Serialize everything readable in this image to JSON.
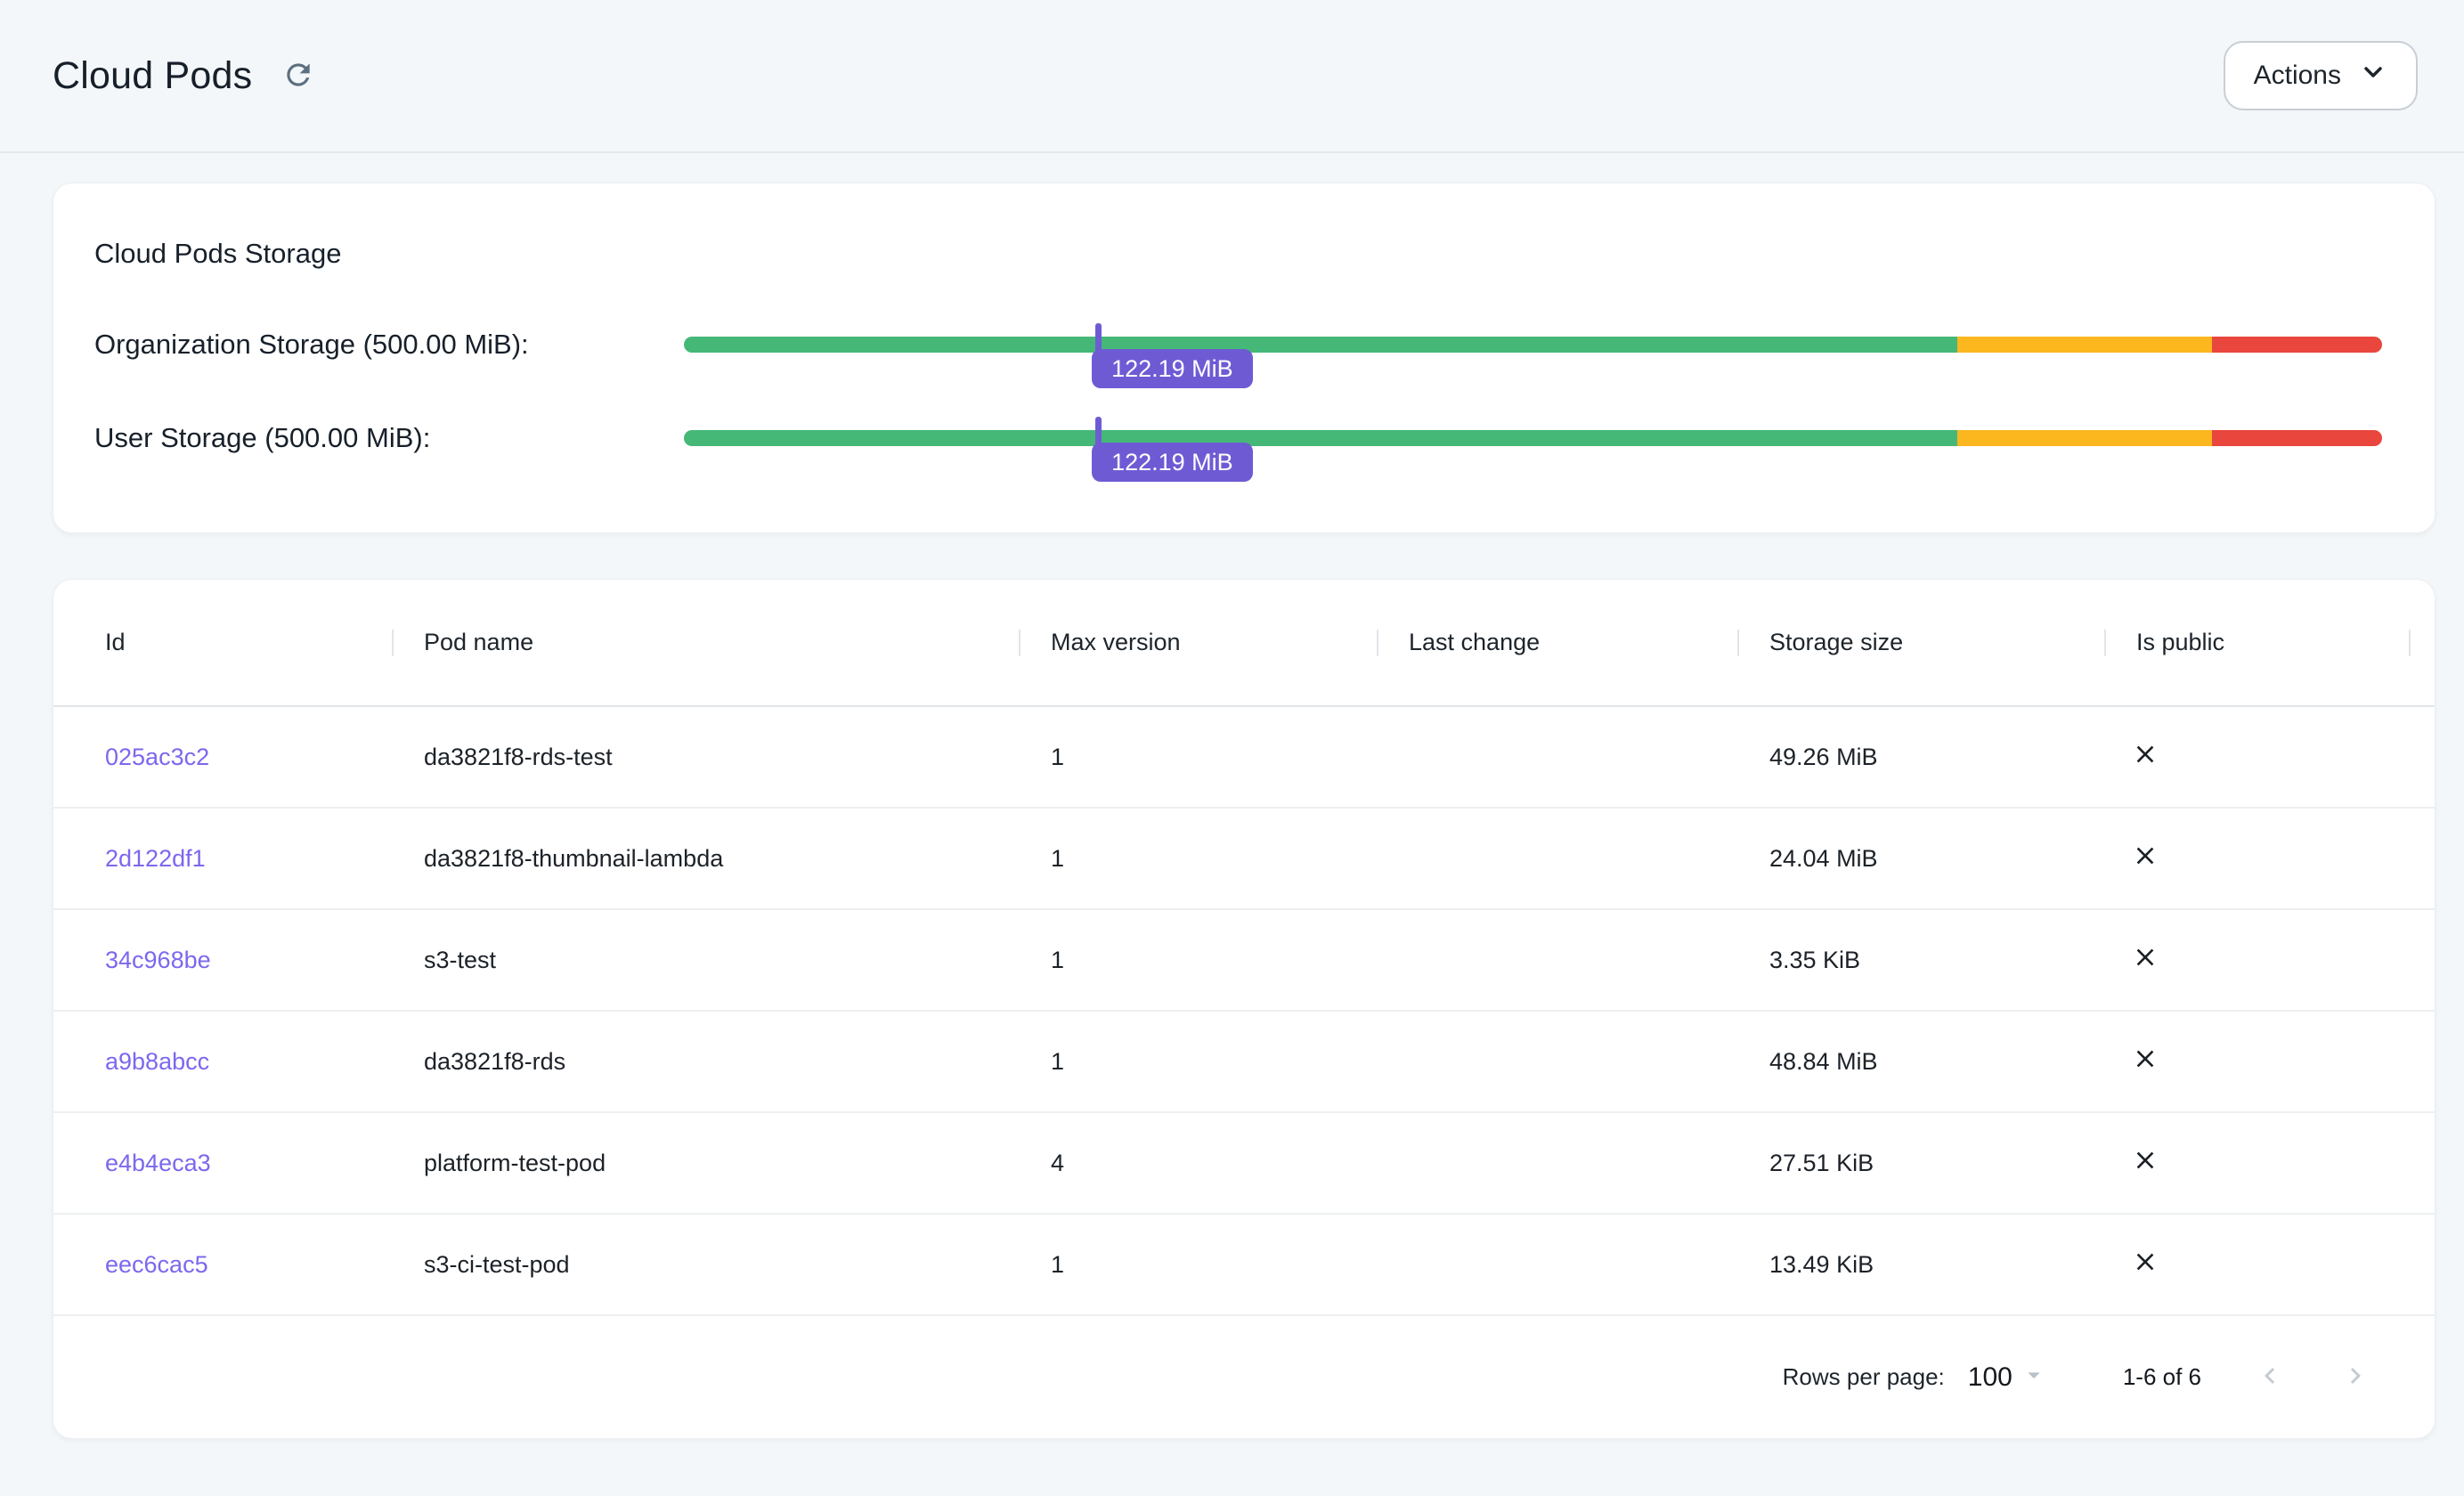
{
  "header": {
    "title": "Cloud Pods",
    "actions_button_label": "Actions"
  },
  "storage_card": {
    "title": "Cloud Pods Storage",
    "bars": [
      {
        "label": "Organization Storage (500.00 MiB):",
        "capacity": "500.00 MiB",
        "used_label": "122.19 MiB",
        "used_percent": 24.44,
        "segments_percent": {
          "green": 75,
          "amber": 15,
          "red": 10
        }
      },
      {
        "label": "User Storage (500.00 MiB):",
        "capacity": "500.00 MiB",
        "used_label": "122.19 MiB",
        "used_percent": 24.44,
        "segments_percent": {
          "green": 75,
          "amber": 15,
          "red": 10
        }
      }
    ]
  },
  "table": {
    "columns": [
      "Id",
      "Pod name",
      "Max version",
      "Last change",
      "Storage size",
      "Is public"
    ],
    "rows": [
      {
        "id": "025ac3c2",
        "pod_name": "da3821f8-rds-test",
        "max_version": "1",
        "last_change": "",
        "storage_size": "49.26 MiB",
        "is_public": false
      },
      {
        "id": "2d122df1",
        "pod_name": "da3821f8-thumbnail-lambda",
        "max_version": "1",
        "last_change": "",
        "storage_size": "24.04 MiB",
        "is_public": false
      },
      {
        "id": "34c968be",
        "pod_name": "s3-test",
        "max_version": "1",
        "last_change": "",
        "storage_size": "3.35 KiB",
        "is_public": false
      },
      {
        "id": "a9b8abcc",
        "pod_name": "da3821f8-rds",
        "max_version": "1",
        "last_change": "",
        "storage_size": "48.84 MiB",
        "is_public": false
      },
      {
        "id": "e4b4eca3",
        "pod_name": "platform-test-pod",
        "max_version": "4",
        "last_change": "",
        "storage_size": "27.51 KiB",
        "is_public": false
      },
      {
        "id": "eec6cac5",
        "pod_name": "s3-ci-test-pod",
        "max_version": "1",
        "last_change": "",
        "storage_size": "13.49 KiB",
        "is_public": false
      }
    ],
    "pagination": {
      "rows_per_page_label": "Rows per page:",
      "rows_per_page_value": "100",
      "range_label": "1-6 of 6"
    }
  },
  "colors": {
    "accent_purple": "#6e5bd4",
    "link_purple": "#7b68ee",
    "bar_green": "#45b878",
    "bar_amber": "#fcb71f",
    "bar_red": "#e9463d"
  }
}
